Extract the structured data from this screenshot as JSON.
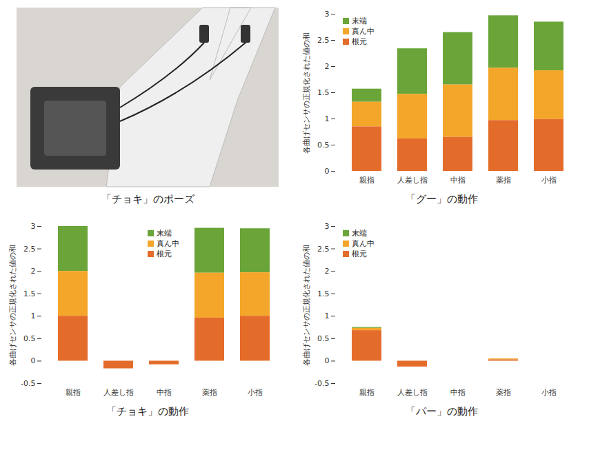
{
  "photo": {
    "caption": "「チョキ」のポーズ"
  },
  "chart_data": [
    {
      "type": "bar",
      "title": "「グー」の動作",
      "y_label": "各曲げセンサの正規化された値の和",
      "categories": [
        "親指",
        "人差し指",
        "中指",
        "薬指",
        "小指"
      ],
      "series": [
        {
          "name": "末端",
          "color": "#6ba539",
          "values": [
            0.25,
            0.87,
            1.0,
            1.0,
            0.93
          ]
        },
        {
          "name": "真ん中",
          "color": "#f4a62a",
          "values": [
            0.47,
            0.85,
            1.0,
            1.0,
            0.93
          ]
        },
        {
          "name": "根元",
          "color": "#e46c2b",
          "values": [
            0.85,
            0.62,
            0.65,
            0.97,
            0.99
          ]
        }
      ],
      "ylim": [
        0,
        3
      ],
      "yticks": [
        0,
        0.5,
        1,
        1.5,
        2,
        2.5,
        3
      ],
      "stacked": true,
      "legend": "top-left",
      "grid": false
    },
    {
      "type": "bar",
      "title": "「チョキ」の動作",
      "y_label": "各曲げセンサの正規化された値の和",
      "categories": [
        "親指",
        "人差し指",
        "中指",
        "薬指",
        "小指"
      ],
      "series": [
        {
          "name": "末端",
          "color": "#6ba539",
          "values": [
            1.0,
            0,
            0,
            1.0,
            0.98
          ]
        },
        {
          "name": "真ん中",
          "color": "#f4a62a",
          "values": [
            1.0,
            0,
            0,
            1.0,
            0.97
          ]
        },
        {
          "name": "根元",
          "color": "#e46c2b",
          "values": [
            1.0,
            -0.17,
            -0.08,
            0.96,
            1.0
          ]
        }
      ],
      "ylim": [
        -0.5,
        3
      ],
      "yticks": [
        -0.5,
        0,
        0.5,
        1,
        1.5,
        2,
        2.5,
        3
      ],
      "stacked": true,
      "legend": "top",
      "grid": false
    },
    {
      "type": "bar",
      "title": "「パー」の動作",
      "y_label": "各曲げセンサの正規化された値の和",
      "categories": [
        "親指",
        "人差し指",
        "中指",
        "薬指",
        "小指"
      ],
      "series": [
        {
          "name": "末端",
          "color": "#6ba539",
          "values": [
            0.02,
            0,
            0,
            0,
            0
          ]
        },
        {
          "name": "真ん中",
          "color": "#f4a62a",
          "values": [
            0.05,
            0,
            0,
            0.02,
            0
          ]
        },
        {
          "name": "根元",
          "color": "#e46c2b",
          "values": [
            0.68,
            -0.13,
            0,
            0.03,
            0
          ]
        }
      ],
      "ylim": [
        -0.5,
        3
      ],
      "yticks": [
        -0.5,
        0,
        0.5,
        1,
        1.5,
        2,
        2.5,
        3
      ],
      "stacked": true,
      "legend": "top-left",
      "grid": false
    }
  ]
}
